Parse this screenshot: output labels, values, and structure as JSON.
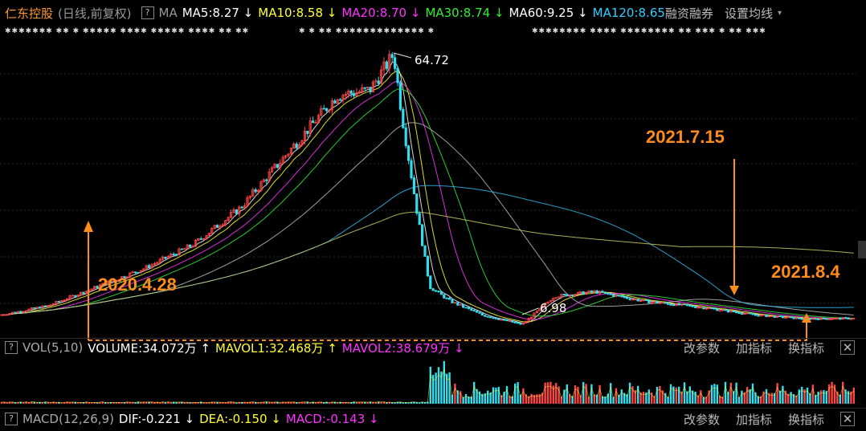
{
  "header": {
    "stock_name": "仁东控股",
    "mode": "(日线,前复权)",
    "ma_label": "MA",
    "ma_values": [
      {
        "text": "MA5:8.27 ↓",
        "color": "#ffffff"
      },
      {
        "text": "MA10:8.58 ↓",
        "color": "#ffff33"
      },
      {
        "text": "MA20:8.70 ↓",
        "color": "#ff33ff"
      },
      {
        "text": "MA30:8.74 ↓",
        "color": "#33ee33"
      },
      {
        "text": "MA60:9.25 ↓",
        "color": "#ffffff"
      },
      {
        "text": "MA120:8.65",
        "color": "#33ccff"
      }
    ],
    "margin_btn": "融资融券",
    "settings_btn": "设置均线",
    "question": "?"
  },
  "tick_row": [
    "✱✱✱✱✱✱✱ ✱✱ ✱ ✱✱✱✱✱ ✱✱✱✱ ✱✱✱✱✱ ✱✱✱✱ ✱✱ ✱✱",
    "✱ ✱ ✱✱ ✱✱✱✱✱✱✱✱✱✱✱✱✱ ✱",
    "✱✱✱✱✱✱✱✱ ✱✱✱✱ ✱✱✱✱✱✱✱✱ ✱✱ ✱✱✱ ✱ ✱✱ ✱✱✱"
  ],
  "annotations": {
    "high": "64.72",
    "low": "6.98",
    "date1": "2020.4.28",
    "date2": "2021.7.15",
    "date3": "2021.8.4"
  },
  "volume_header": {
    "label": "VOL(5,10)",
    "volume": "VOLUME:34.072万 ↑",
    "mavol1": "MAVOL1:32.468万 ↑",
    "mavol2": "MAVOL2:38.679万 ↓",
    "btn_params": "改参数",
    "btn_add": "加指标",
    "btn_switch": "换指标",
    "close": "✕",
    "question": "?"
  },
  "macd_header": {
    "label": "MACD(12,26,9)",
    "dif": "DIF:-0.221 ↓",
    "dea": "DEA:-0.150 ↓",
    "macd": "MACD:-0.143 ↓",
    "btn_params": "改参数",
    "btn_add": "加指标",
    "btn_switch": "换指标",
    "close": "✕",
    "question": "?"
  },
  "colors": {
    "up": "#ff4444",
    "down": "#33ddee",
    "annotation": "#ff8c1a",
    "ma5": "#ffffff",
    "ma10": "#ffff33",
    "ma20": "#ff33ff",
    "ma30": "#33ee33",
    "ma60": "#bbbbbb",
    "ma120": "#33bbee",
    "ma250": "#cccc66"
  },
  "chart_data": {
    "type": "candlestick",
    "period": "daily",
    "adjustment": "forward-adjusted",
    "y_annotations": {
      "high": 64.72,
      "low": 6.98
    },
    "approx_close_path": [
      {
        "x": 0,
        "close": 9.0
      },
      {
        "x": 60,
        "close": 11.0
      },
      {
        "x": 120,
        "close": 15.0
      },
      {
        "x": 180,
        "close": 19.0
      },
      {
        "x": 240,
        "close": 24.0
      },
      {
        "x": 300,
        "close": 32.0
      },
      {
        "x": 360,
        "close": 44.0
      },
      {
        "x": 420,
        "close": 56.0
      },
      {
        "x": 460,
        "close": 57.0
      },
      {
        "x": 490,
        "close": 64.72
      },
      {
        "x": 500,
        "close": 52.0
      },
      {
        "x": 520,
        "close": 30.0
      },
      {
        "x": 535,
        "close": 15.0
      },
      {
        "x": 560,
        "close": 12.0
      },
      {
        "x": 600,
        "close": 9.0
      },
      {
        "x": 650,
        "close": 6.98
      },
      {
        "x": 690,
        "close": 13.0
      },
      {
        "x": 740,
        "close": 14.0
      },
      {
        "x": 800,
        "close": 12.0
      },
      {
        "x": 880,
        "close": 10.5
      },
      {
        "x": 940,
        "close": 9.0
      },
      {
        "x": 1000,
        "close": 8.2
      },
      {
        "x": 1070,
        "close": 8.3
      }
    ],
    "marked_dates": [
      "2020.4.28",
      "2021.7.15",
      "2021.8.4"
    ]
  }
}
